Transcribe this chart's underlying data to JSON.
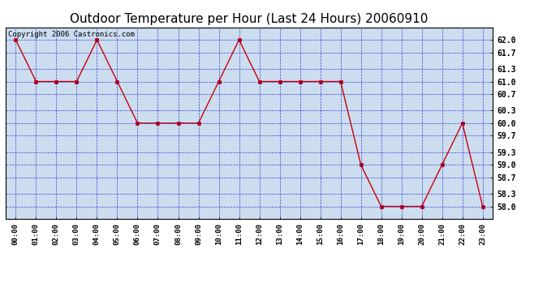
{
  "title": "Outdoor Temperature per Hour (Last 24 Hours) 20060910",
  "copyright_text": "Copyright 2006 Castronics.com",
  "hours": [
    "00:00",
    "01:00",
    "02:00",
    "03:00",
    "04:00",
    "05:00",
    "06:00",
    "07:00",
    "08:00",
    "09:00",
    "10:00",
    "11:00",
    "12:00",
    "13:00",
    "14:00",
    "15:00",
    "16:00",
    "17:00",
    "18:00",
    "19:00",
    "20:00",
    "21:00",
    "22:00",
    "23:00"
  ],
  "temps": [
    62.0,
    61.0,
    61.0,
    61.0,
    62.0,
    61.0,
    60.0,
    60.0,
    60.0,
    60.0,
    61.0,
    62.0,
    61.0,
    61.0,
    61.0,
    61.0,
    61.0,
    59.0,
    58.0,
    58.0,
    58.0,
    59.0,
    60.0,
    58.0
  ],
  "ylim": [
    57.7,
    62.3
  ],
  "yticks": [
    58.0,
    58.3,
    58.7,
    59.0,
    59.3,
    59.7,
    60.0,
    60.3,
    60.7,
    61.0,
    61.3,
    61.7,
    62.0
  ],
  "line_color": "#cc0000",
  "marker_color": "#cc0000",
  "grid_color": "#0000cc",
  "bg_color": "#ccddf0",
  "title_fontsize": 11,
  "copyright_fontsize": 6.5
}
